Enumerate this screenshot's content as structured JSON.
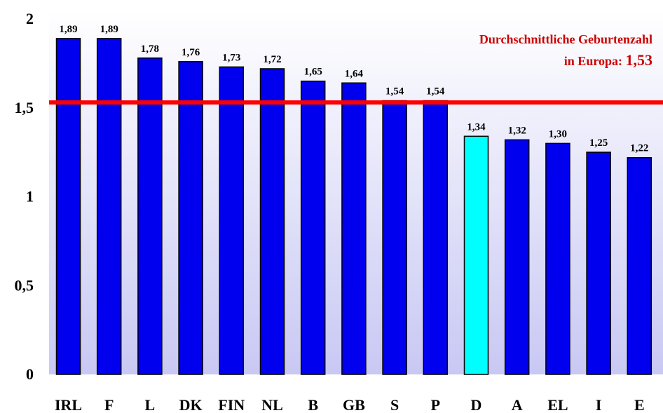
{
  "chart_data": {
    "type": "bar",
    "categories": [
      "IRL",
      "F",
      "L",
      "DK",
      "FIN",
      "NL",
      "B",
      "GB",
      "S",
      "P",
      "D",
      "A",
      "EL",
      "I",
      "E"
    ],
    "values": [
      1.89,
      1.89,
      1.78,
      1.76,
      1.73,
      1.72,
      1.65,
      1.64,
      1.54,
      1.54,
      1.34,
      1.32,
      1.3,
      1.25,
      1.22
    ],
    "value_labels": [
      "1,89",
      "1,89",
      "1,78",
      "1,76",
      "1,73",
      "1,72",
      "1,65",
      "1,64",
      "1,54",
      "1,54",
      "1,34",
      "1,32",
      "1,30",
      "1,25",
      "1,22"
    ],
    "highlighted_category": "D",
    "ylim": [
      0,
      2
    ],
    "yticks": [
      0,
      0.5,
      1,
      1.5,
      2
    ],
    "ytick_labels": [
      "0",
      "0,5",
      "1",
      "1,5",
      "2"
    ],
    "reference_line": {
      "value": 1.53,
      "label_line1": "Durchschnittliche Geburtenzahl",
      "label_line2": "in Europa: ",
      "label_value": "1,53"
    },
    "grid": false,
    "legend": "none"
  },
  "colors": {
    "bar": "#0000EE",
    "bar_highlight": "#00FFFF",
    "bar_outline": "#000000",
    "reference_line": "#FF0000",
    "annotation_text": "#CC0000",
    "plot_bg_top": "#FFFFFF",
    "plot_bg_bottom": "#C8C8F4"
  }
}
